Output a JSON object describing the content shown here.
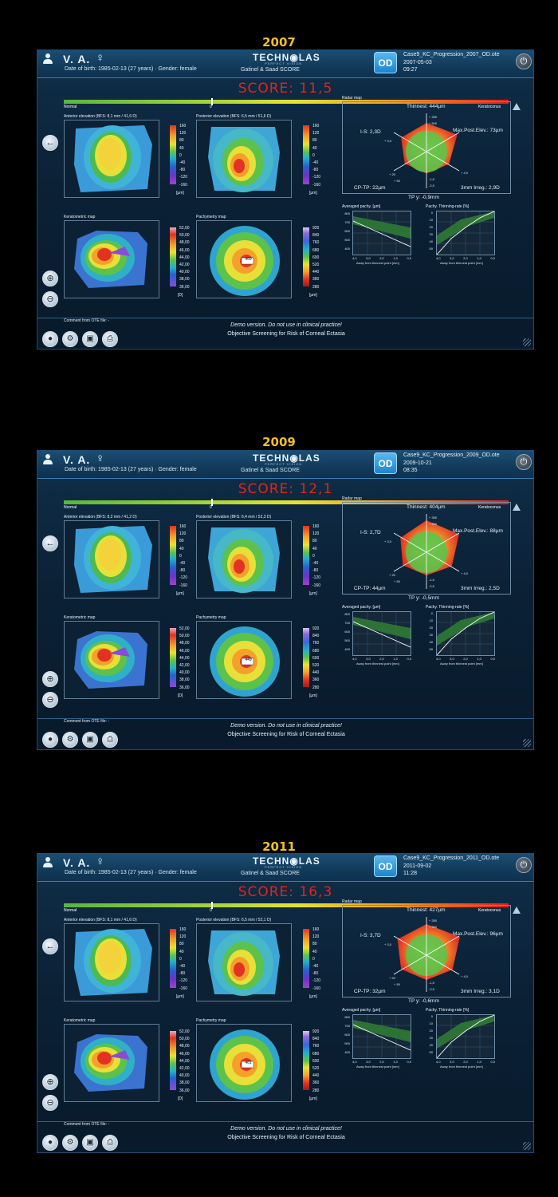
{
  "common": {
    "patient_name": "V. A.",
    "gender_symbol": "♀",
    "dob_line": "Date of birth: 1985-02-13  (27 years)  ·  Gender: female",
    "logo": "TECHN◉LAS",
    "logo_sub": "PERFECT VISION",
    "gatinel": "Gatinel & Saad   SCORE",
    "eye": "OD",
    "scale_normal": "Normal",
    "scale_zero": "0",
    "scale_keratoconus": "Keratoconus",
    "radar_title": "Radar map",
    "kera_title": "Keratometric map",
    "pachy_title": "Pachymetry map",
    "avg_pachy_title": "Averaged pachy. [µm]",
    "thinning_title": "Pachy. Thinning-rate [%]",
    "away_label": "Away from thinnest point [mm]",
    "comment": "Comment from OTE file:  -",
    "demo_note": "Demo version. Do not use in clinical practice!",
    "objective": "Objective Screening for Risk of Corneal Ectasia",
    "elev_ticks": [
      "160",
      "120",
      "80",
      "40",
      "0",
      "-40",
      "-80",
      "-120",
      "-160"
    ],
    "elev_unit": "[µm]",
    "kera_ticks": [
      "52,00",
      "50,00",
      "48,00",
      "46,00",
      "44,00",
      "42,00",
      "40,00",
      "38,00",
      "36,00"
    ],
    "kera_unit": "[D]",
    "pachy_ticks": [
      "920",
      "840",
      "760",
      "680",
      "600",
      "520",
      "440",
      "360",
      "280"
    ],
    "pachy_unit": "[µm]",
    "avg_y": [
      "800",
      "700",
      "600",
      "500",
      "400"
    ],
    "thin_y": [
      "0",
      "10",
      "20",
      "30",
      "40",
      "50"
    ],
    "gx_ticks": [
      "4,0",
      "3,0",
      "2,0",
      "1,0",
      "0,0"
    ],
    "radar_ticks": [
      "+ 350",
      "+ 500",
      "+ 3,0",
      "+ 4,0",
      "+ 20",
      "+ 50",
      "-1,5",
      "-2,5",
      "+ 6,0",
      "-1,5"
    ]
  },
  "exams": [
    {
      "year": "2007",
      "file": "Case9_KC_Progression_2007_OD.ote",
      "date": "2007-05-03",
      "time": "09:27",
      "score": "SCORE: 11,5",
      "ant_title": "Anterior elevation (BFS: 8,1 mm / 41,6 D)",
      "post_title": "Posterior elevation (BFS: 6,5 mm / 51,6 D)",
      "thinnest_value": "469",
      "radar": {
        "thinnest": "Thinnest: 444µm",
        "is": "I-S: 2,3D",
        "maxpost": "Max.Post.Elev.: 73µm",
        "cptp": "CP-TP: 22µm",
        "irreg": "3mm Irreg.: 2,9D",
        "tpy": "TP y: -0,9mm"
      },
      "radar_levels": [
        0.72,
        0.85,
        0.62,
        0.55,
        0.6,
        0.7
      ]
    },
    {
      "year": "2009",
      "file": "Case9_KC_Progression_2009_OD.ote",
      "date": "2009-10-21",
      "time": "08:35",
      "score": "SCORE: 12,1",
      "ant_title": "Anterior elevation (BFS: 8,2 mm / 41,2 D)",
      "post_title": "Posterior elevation (BFS: 6,4 mm / 52,3 D)",
      "thinnest_value": "449",
      "radar": {
        "thinnest": "Thinnest: 404µm",
        "is": "I-S: 2,7D",
        "maxpost": "Max.Post.Elev.: 88µm",
        "cptp": "CP-TP: 44µm",
        "irreg": "3mm Irreg.: 2,5D",
        "tpy": "TP y: -0,5mm"
      },
      "radar_levels": [
        0.8,
        0.9,
        0.7,
        0.58,
        0.65,
        0.72
      ]
    },
    {
      "year": "2011",
      "file": "Case9_KC_Progression_2011_OD.ote",
      "date": "2011-09-02",
      "time": "11:28",
      "score": "SCORE: 16,3",
      "ant_title": "Anterior elevation (BFS: 8,1 mm / 41,6 D)",
      "post_title": "Posterior elevation (BFS: 6,5 mm / 52,1 D)",
      "thinnest_value": "461",
      "radar": {
        "thinnest": "Thinnest: 427µm",
        "is": "I-S: 3,7D",
        "maxpost": "Max.Post.Elev.: 96µm",
        "cptp": "CP-TP: 32µm",
        "irreg": "3mm Irreg.: 3,1D",
        "tpy": "TP y: -0,6mm"
      },
      "radar_levels": [
        0.78,
        0.92,
        0.72,
        0.62,
        0.7,
        0.8
      ]
    }
  ]
}
